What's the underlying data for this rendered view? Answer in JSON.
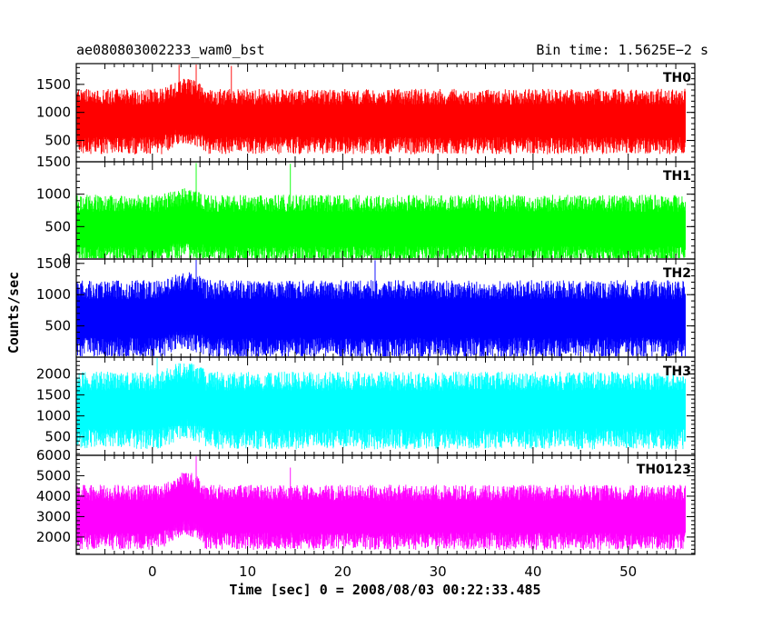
{
  "header": {
    "left_title": "ae080803002233_wam0_bst",
    "right_title": "Bin time: 1.5625E−2 s"
  },
  "chart_data": {
    "type": "line",
    "title": "ae080803002233_wam0_bst",
    "subtitle": "Bin time: 1.5625E−2 s",
    "xlabel": "Time [sec] 0 = 2008/08/03 00:22:33.485",
    "ylabel": "Counts/sec",
    "xlim": [
      -8.0,
      57.0
    ],
    "x_range": [
      -8.0,
      56.0
    ],
    "bin_time_s": 0.015625,
    "x_ticks": [
      0,
      10,
      20,
      30,
      40,
      50
    ],
    "grid": false,
    "panels": [
      {
        "name": "TH0",
        "color": "#ff0000",
        "ylim": [
          120,
          1870
        ],
        "y_ticks": [
          500,
          1000,
          1500
        ],
        "typical_low": 430,
        "typical_high": 1420,
        "median": 850,
        "peak_events": [
          {
            "x": 2.8,
            "y": 1850
          },
          {
            "x": 4.6,
            "y": 1870
          },
          {
            "x": 8.3,
            "y": 1830
          }
        ]
      },
      {
        "name": "TH1",
        "color": "#00ff00",
        "ylim": [
          0,
          1500
        ],
        "y_ticks": [
          0,
          500,
          1000,
          1500
        ],
        "typical_low": 80,
        "typical_high": 1000,
        "median": 460,
        "peak_events": [
          {
            "x": 4.6,
            "y": 1480
          },
          {
            "x": 14.5,
            "y": 1470
          }
        ]
      },
      {
        "name": "TH2",
        "color": "#0000ff",
        "ylim": [
          0,
          1570
        ],
        "y_ticks": [
          500,
          1000,
          1500
        ],
        "typical_low": 80,
        "typical_high": 1140,
        "median": 620,
        "peak_events": [
          {
            "x": 4.6,
            "y": 1560
          },
          {
            "x": 23.4,
            "y": 1550
          }
        ]
      },
      {
        "name": "TH3",
        "color": "#00ffff",
        "ylim": [
          60,
          2400
        ],
        "y_ticks": [
          500,
          1000,
          1500,
          2000
        ],
        "typical_low": 430,
        "typical_high": 2000,
        "median": 1150,
        "peak_events": [
          {
            "x": 0.5,
            "y": 2380
          }
        ]
      },
      {
        "name": "TH0123",
        "color": "#ff00ff",
        "ylim": [
          1150,
          6000
        ],
        "y_ticks": [
          2000,
          3000,
          4000,
          5000,
          6000
        ],
        "typical_low": 1700,
        "typical_high": 4400,
        "median": 3000,
        "peak_events": [
          {
            "x": 4.6,
            "y": 5950
          },
          {
            "x": 14.5,
            "y": 5400
          }
        ]
      }
    ]
  }
}
